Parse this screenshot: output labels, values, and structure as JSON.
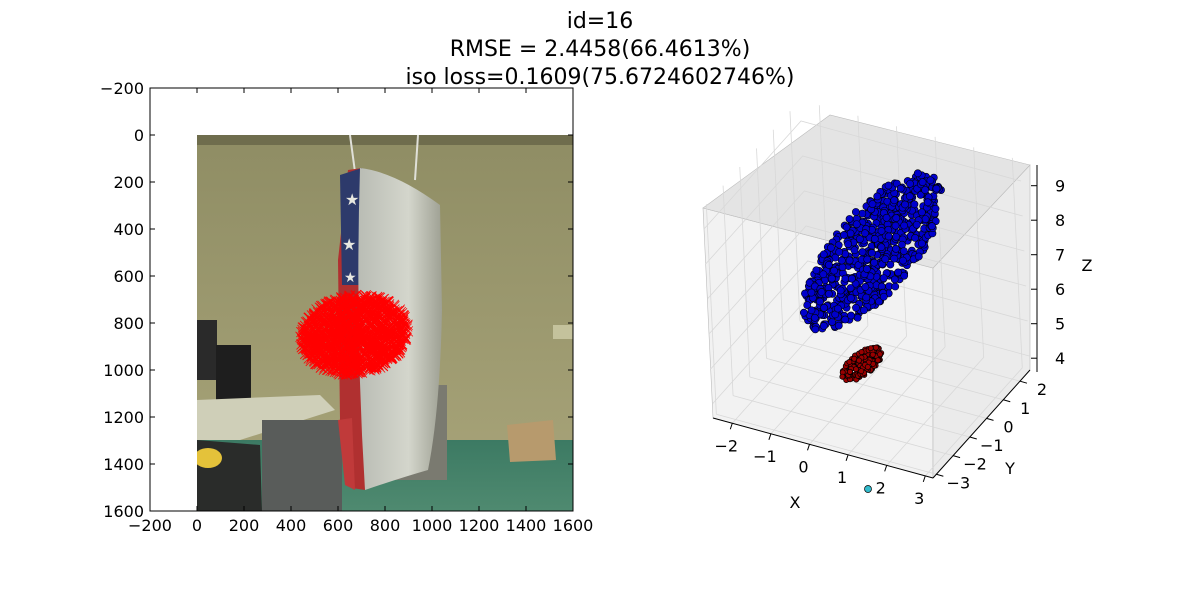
{
  "figure": {
    "title_lines": [
      "id=16",
      "RMSE = 2.4458(66.4613%)",
      "iso loss=0.1609(75.6724602746%)"
    ]
  },
  "chart_data": [
    {
      "type": "scatter",
      "title": "",
      "xlim": [
        -200,
        1600
      ],
      "ylim": [
        1600,
        -200
      ],
      "xticks": [
        -200,
        0,
        200,
        400,
        600,
        800,
        1000,
        1200,
        1400,
        1600
      ],
      "yticks": [
        -200,
        0,
        200,
        400,
        600,
        800,
        1000,
        1200,
        1400,
        1600
      ],
      "xtick_labels": [
        "−200",
        "0",
        "200",
        "400",
        "600",
        "800",
        "1000",
        "1200",
        "1400",
        "1600"
      ],
      "ytick_labels": [
        "−200",
        "0",
        "200",
        "400",
        "600",
        "800",
        "1000",
        "1200",
        "1400",
        "1600"
      ],
      "background_image": {
        "extent": [
          0,
          1600,
          0,
          1600
        ],
        "content": "photo of a pillow with American flag pattern hanging in an office"
      },
      "markers": {
        "style": "x",
        "color": "#ff0000",
        "region_center": [
          670,
          850
        ],
        "region_radii": [
          230,
          170
        ]
      },
      "grid": false
    },
    {
      "type": "scatter",
      "projection": "3d",
      "xlabel": "X",
      "ylabel": "Y",
      "zlabel": "Z",
      "xlim": [
        -2.5,
        3.2
      ],
      "ylim": [
        -3.2,
        2.6
      ],
      "zlim": [
        3.6,
        9.6
      ],
      "xticks": [
        -2,
        -1,
        0,
        1,
        2,
        3
      ],
      "yticks": [
        -3,
        -2,
        -1,
        0,
        1,
        2
      ],
      "zticks": [
        4,
        5,
        6,
        7,
        8,
        9
      ],
      "xtick_labels": [
        "−2",
        "−1",
        "0",
        "1",
        "2",
        "3"
      ],
      "ytick_labels": [
        "−3",
        "−2",
        "−1",
        "0",
        "1",
        "2"
      ],
      "ztick_labels": [
        "4",
        "5",
        "6",
        "7",
        "8",
        "9"
      ],
      "series": [
        {
          "color": "#0000cc",
          "shape": "elongated ellipsoid cloud",
          "z_range": [
            5.5,
            9.5
          ]
        },
        {
          "color": "#990000",
          "shape": "small dark cluster",
          "z_range": [
            3.8,
            4.6
          ]
        },
        {
          "color": "#33bbcc",
          "shape": "single point",
          "z_range": [
            3.6,
            3.6
          ]
        }
      ],
      "grid": true
    }
  ]
}
